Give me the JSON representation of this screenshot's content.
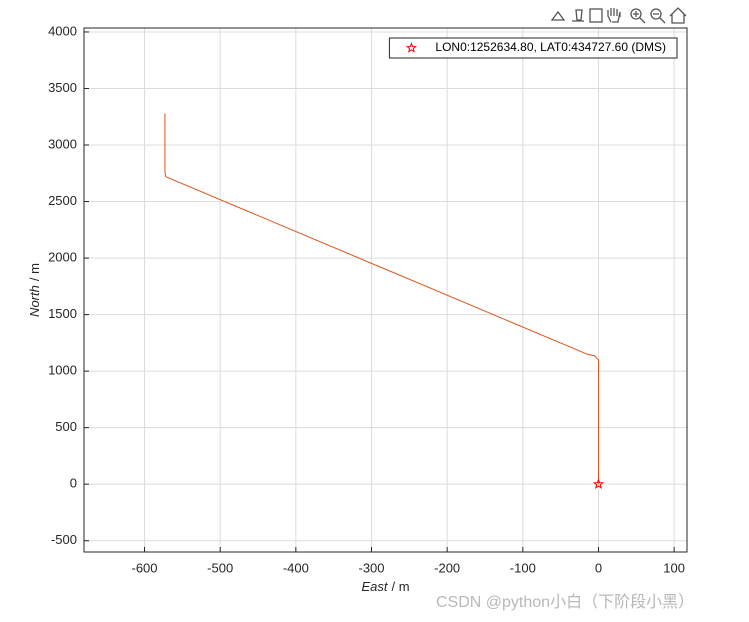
{
  "chart_data": {
    "type": "line",
    "xlabel": [
      "East",
      "/ m"
    ],
    "ylabel": [
      "North",
      "/ m"
    ],
    "series": [
      {
        "name": "LON0:1252634.80, LAT0:434727.60 (DMS)",
        "color": "#ff0000",
        "marker": "star",
        "x": [
          0
        ],
        "values": [
          0
        ]
      },
      {
        "color": "#d95319",
        "x": [
          0,
          0,
          -5,
          -15,
          -565,
          -572,
          -573,
          -573
        ],
        "values": [
          0,
          1100,
          1135,
          1150,
          2700,
          2720,
          2760,
          3280
        ]
      }
    ],
    "xlim": [
      -680,
      117
    ],
    "ylim": [
      -600,
      4035
    ],
    "xticks": [
      -600,
      -500,
      -400,
      -300,
      -200,
      -100,
      0,
      100
    ],
    "yticks": [
      -500,
      0,
      500,
      1000,
      1500,
      2000,
      2500,
      3000,
      3500,
      4000
    ],
    "grid": true,
    "legend": "top-right"
  },
  "watermark": "CSDN @python小白（下阶段小黑）"
}
